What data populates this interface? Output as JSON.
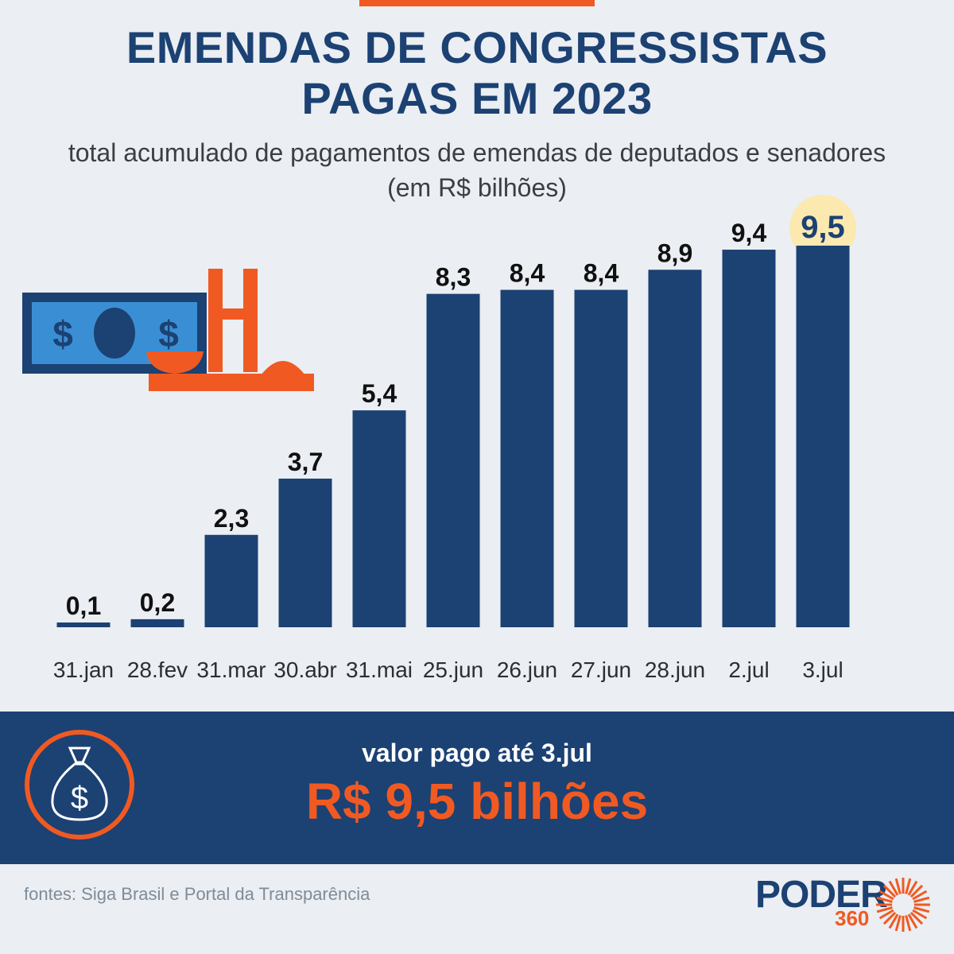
{
  "header": {
    "title_line1": "EMENDAS DE CONGRESSISTAS",
    "title_line2": "PAGAS EM 2023",
    "subtitle": "total acumulado de pagamentos de emendas de deputados e senadores (em R$ bilhões)"
  },
  "chart_data": {
    "type": "bar",
    "categories": [
      "31.jan",
      "28.fev",
      "31.mar",
      "30.abr",
      "31.mai",
      "25.jun",
      "26.jun",
      "27.jun",
      "28.jun",
      "2.jul",
      "3.jul"
    ],
    "values": [
      0.1,
      0.2,
      2.3,
      3.7,
      5.4,
      8.3,
      8.4,
      8.4,
      8.9,
      9.4,
      9.5
    ],
    "value_labels": [
      "0,1",
      "0,2",
      "2,3",
      "3,7",
      "5,4",
      "8,3",
      "8,4",
      "8,4",
      "8,9",
      "9,4",
      "9,5"
    ],
    "highlighted_category": "3.jul",
    "ylim": [
      0,
      9.5
    ],
    "grid": false,
    "bar_color": "#1c4173",
    "highlight_color": "#fbe9b0"
  },
  "summary": {
    "label": "valor pago até 3.jul",
    "value": "R$ 9,5 bilhões"
  },
  "footer": {
    "sources": "fontes: Siga Brasil e Portal da Transparência",
    "logo_word": "PODER",
    "logo_number": "360"
  },
  "colors": {
    "accent": "#f05a22",
    "navy": "#1c4173",
    "background": "#ebeef2",
    "money_green": "#3a8fd4"
  },
  "icons": {
    "illustration": "money-bill-and-congress-icon",
    "banner": "money-bag-icon",
    "logo": "sunburst-logo-icon"
  }
}
